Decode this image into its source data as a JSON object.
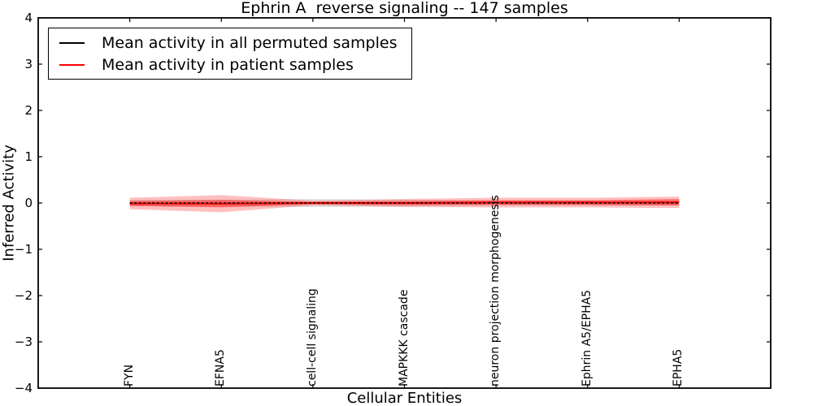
{
  "colors": {
    "frame": "#000000",
    "permuted_line": "#000000",
    "patient_line": "#ff0000",
    "band_gray": "#c8c8c8",
    "band_red": "#ff0000",
    "background": "#ffffff"
  },
  "chart_data": {
    "type": "line",
    "title": "Ephrin A  reverse signaling -- 147 samples",
    "xlabel": "Cellular Entities",
    "ylabel": "Inferred Activity",
    "sample_count_in_title": 147,
    "xlim": [
      0,
      8
    ],
    "ylim": [
      -4,
      4
    ],
    "yticks": [
      4,
      3,
      2,
      1,
      0,
      -1,
      -2,
      -3,
      -4
    ],
    "ytick_labels": [
      "4",
      "3",
      "2",
      "1",
      "0",
      "−1",
      "−2",
      "−3",
      "−4"
    ],
    "grid": false,
    "legend_position": "upper left",
    "x": [
      1,
      2,
      3,
      4,
      5,
      6,
      7
    ],
    "categories": [
      "FYN",
      "EFNA5",
      "cell-cell signaling",
      "MAPKKK cascade",
      "neuron projection morphogenesis",
      "Ephrin A5/EPHA5",
      "EPHA5"
    ],
    "series": [
      {
        "name": "Mean activity in all permuted samples",
        "color": "#000000",
        "line_style": "dashed",
        "values": [
          0,
          0,
          0,
          0,
          0,
          0,
          0
        ],
        "band": {
          "halfwidths": [
            0.07,
            0.07,
            0.088,
            0.07,
            0.053,
            0.053,
            0.053
          ],
          "color": "#c8c8c8",
          "opacity": 0.55
        }
      },
      {
        "name": "Mean activity in patient samples",
        "color": "#ff0000",
        "line_style": "solid",
        "values": [
          -0.01,
          -0.015,
          0.0,
          0.0,
          0.01,
          0.01,
          0.015
        ],
        "band_outer": {
          "halfwidths": [
            0.123,
            0.185,
            0.05,
            0.088,
            0.105,
            0.105,
            0.123
          ],
          "color": "#ff0000",
          "opacity": 0.25
        },
        "band_inner": {
          "halfwidths": [
            0.053,
            0.08,
            0.026,
            0.044,
            0.05,
            0.05,
            0.07
          ],
          "color": "#ff0000",
          "opacity": 0.42
        }
      }
    ]
  }
}
